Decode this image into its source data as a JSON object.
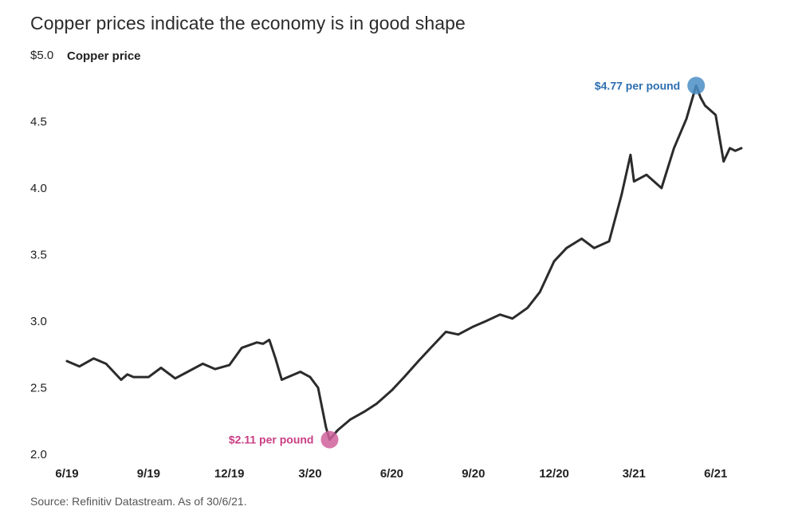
{
  "header": {
    "title": "Copper prices indicate the economy is in good shape",
    "source": "Source: Refinitiv Datastream. As of 30/6/21."
  },
  "chart_data": {
    "type": "line",
    "title": "Copper prices indicate the economy is in good shape",
    "ylabel": "Copper price",
    "ylim": [
      2.0,
      5.0
    ],
    "y_ticks": [
      "$5.0",
      "4.5",
      "4.0",
      "3.5",
      "3.0",
      "2.5",
      "2.0"
    ],
    "y_tick_values": [
      5.0,
      4.5,
      4.0,
      3.5,
      3.0,
      2.5,
      2.0
    ],
    "x_ticks": [
      "6/19",
      "9/19",
      "12/19",
      "3/20",
      "6/20",
      "9/20",
      "12/20",
      "3/21",
      "6/21"
    ],
    "x_tick_values": [
      "2019-06",
      "2019-09",
      "2019-12",
      "2020-03",
      "2020-06",
      "2020-09",
      "2020-12",
      "2021-03",
      "2021-06"
    ],
    "series": [
      {
        "color": "#2b2b2b",
        "x": [
          "2019-06-01",
          "2019-06-15",
          "2019-07-01",
          "2019-07-15",
          "2019-08-01",
          "2019-08-08",
          "2019-08-15",
          "2019-09-01",
          "2019-09-15",
          "2019-10-01",
          "2019-10-15",
          "2019-11-01",
          "2019-11-15",
          "2019-12-01",
          "2019-12-15",
          "2020-01-01",
          "2020-01-08",
          "2020-01-15",
          "2020-01-22",
          "2020-01-29",
          "2020-02-05",
          "2020-02-19",
          "2020-03-01",
          "2020-03-10",
          "2020-03-19",
          "2020-03-23",
          "2020-04-01",
          "2020-04-15",
          "2020-05-01",
          "2020-05-15",
          "2020-06-01",
          "2020-06-15",
          "2020-07-01",
          "2020-07-15",
          "2020-08-01",
          "2020-08-15",
          "2020-09-01",
          "2020-09-15",
          "2020-10-01",
          "2020-10-15",
          "2020-11-01",
          "2020-11-15",
          "2020-12-01",
          "2020-12-15",
          "2021-01-01",
          "2021-01-15",
          "2021-02-01",
          "2021-02-15",
          "2021-02-25",
          "2021-03-01",
          "2021-03-15",
          "2021-04-01",
          "2021-04-15",
          "2021-04-29",
          "2021-05-10",
          "2021-05-15",
          "2021-05-20",
          "2021-06-01",
          "2021-06-10",
          "2021-06-17",
          "2021-06-23",
          "2021-06-30"
        ],
        "values": [
          2.7,
          2.66,
          2.72,
          2.68,
          2.56,
          2.6,
          2.58,
          2.58,
          2.65,
          2.57,
          2.62,
          2.68,
          2.64,
          2.67,
          2.8,
          2.84,
          2.83,
          2.86,
          2.72,
          2.56,
          2.58,
          2.62,
          2.58,
          2.5,
          2.2,
          2.11,
          2.18,
          2.26,
          2.32,
          2.38,
          2.48,
          2.58,
          2.7,
          2.8,
          2.92,
          2.9,
          2.96,
          3.0,
          3.05,
          3.02,
          3.1,
          3.22,
          3.45,
          3.55,
          3.62,
          3.55,
          3.6,
          3.95,
          4.25,
          4.05,
          4.1,
          4.0,
          4.3,
          4.52,
          4.77,
          4.68,
          4.62,
          4.55,
          4.2,
          4.3,
          4.28,
          4.3
        ]
      }
    ],
    "annotations": [
      {
        "label": "$4.77 per pound",
        "x": "2021-05-10",
        "value": 4.77,
        "color": "#4a8ec6",
        "text_color": "#2d6fb0"
      },
      {
        "label": "$2.11 per pound",
        "x": "2020-03-23",
        "value": 2.11,
        "color": "#d0609c",
        "text_color": "#c83e83"
      }
    ],
    "grid": false
  }
}
